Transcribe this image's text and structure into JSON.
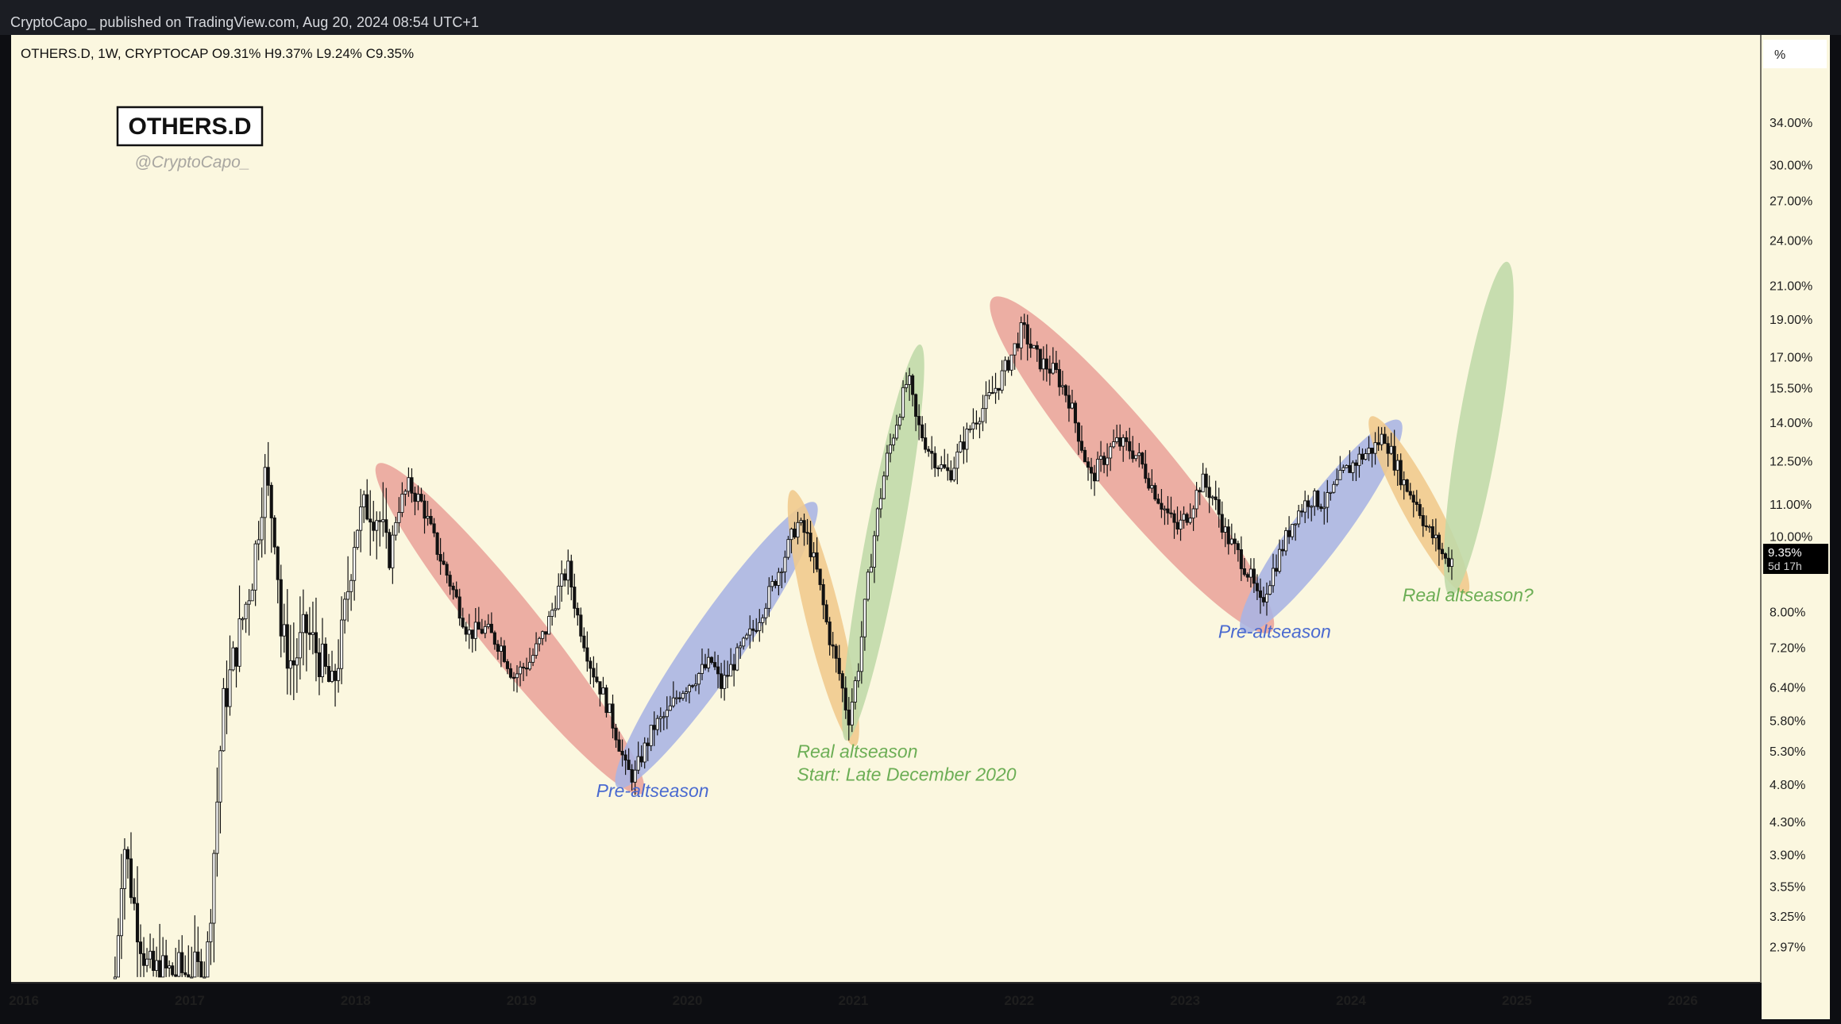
{
  "header": {
    "publish_line": "CryptoCapo_ published on TradingView.com, Aug 20, 2024 08:54 UTC+1"
  },
  "chart_data": {
    "type": "candlestick",
    "symbol_line": "OTHERS.D, 1W, CRYPTOCAP  O9.31%  H9.37%  L9.24%  C9.35%",
    "watermark_title": "OTHERS.D",
    "watermark_author": "@CryptoCapo_",
    "scale": "log",
    "unit_label": "%",
    "ylim": [
      2.7,
      40
    ],
    "xlim": [
      2016.0,
      2026.7
    ],
    "y_ticks": [
      {
        "value": 34.0,
        "label": "34.00%"
      },
      {
        "value": 30.0,
        "label": "30.00%"
      },
      {
        "value": 27.0,
        "label": "27.00%"
      },
      {
        "value": 24.0,
        "label": "24.00%"
      },
      {
        "value": 21.0,
        "label": "21.00%"
      },
      {
        "value": 19.0,
        "label": "19.00%"
      },
      {
        "value": 17.0,
        "label": "17.00%"
      },
      {
        "value": 15.5,
        "label": "15.50%"
      },
      {
        "value": 14.0,
        "label": "14.00%"
      },
      {
        "value": 12.5,
        "label": "12.50%"
      },
      {
        "value": 11.0,
        "label": "11.00%"
      },
      {
        "value": 10.0,
        "label": "10.00%"
      },
      {
        "value": 8.0,
        "label": "8.00%"
      },
      {
        "value": 7.2,
        "label": "7.20%"
      },
      {
        "value": 6.4,
        "label": "6.40%"
      },
      {
        "value": 5.8,
        "label": "5.80%"
      },
      {
        "value": 5.3,
        "label": "5.30%"
      },
      {
        "value": 4.8,
        "label": "4.80%"
      },
      {
        "value": 4.3,
        "label": "4.30%"
      },
      {
        "value": 3.9,
        "label": "3.90%"
      },
      {
        "value": 3.55,
        "label": "3.55%"
      },
      {
        "value": 3.25,
        "label": "3.25%"
      },
      {
        "value": 2.97,
        "label": "2.97%"
      }
    ],
    "x_ticks": [
      {
        "value": 2016.0,
        "label": "2016"
      },
      {
        "value": 2017.0,
        "label": "2017"
      },
      {
        "value": 2018.0,
        "label": "2018"
      },
      {
        "value": 2019.0,
        "label": "2019"
      },
      {
        "value": 2020.0,
        "label": "2020"
      },
      {
        "value": 2021.0,
        "label": "2021"
      },
      {
        "value": 2022.0,
        "label": "2022"
      },
      {
        "value": 2023.0,
        "label": "2023"
      },
      {
        "value": 2024.0,
        "label": "2024"
      },
      {
        "value": 2025.0,
        "label": "2025"
      },
      {
        "value": 2026.0,
        "label": "2026"
      }
    ],
    "last_price": {
      "value": 9.35,
      "label": "9.35%",
      "countdown": "5d 17h"
    },
    "anchors": [
      [
        2016.55,
        2.7
      ],
      [
        2016.6,
        4.1
      ],
      [
        2016.67,
        3.3
      ],
      [
        2016.75,
        2.75
      ],
      [
        2016.9,
        2.75
      ],
      [
        2017.1,
        2.75
      ],
      [
        2017.2,
        6.0
      ],
      [
        2017.3,
        7.5
      ],
      [
        2017.38,
        9.0
      ],
      [
        2017.45,
        12.0
      ],
      [
        2017.52,
        10.0
      ],
      [
        2017.55,
        7.5
      ],
      [
        2017.62,
        6.8
      ],
      [
        2017.7,
        7.6
      ],
      [
        2017.78,
        7.0
      ],
      [
        2017.86,
        6.3
      ],
      [
        2017.92,
        7.5
      ],
      [
        2018.0,
        10.3
      ],
      [
        2018.08,
        11.0
      ],
      [
        2018.14,
        10.6
      ],
      [
        2018.2,
        9.2
      ],
      [
        2018.25,
        10.8
      ],
      [
        2018.32,
        11.6
      ],
      [
        2018.4,
        11.0
      ],
      [
        2018.5,
        9.5
      ],
      [
        2018.58,
        8.6
      ],
      [
        2018.68,
        7.5
      ],
      [
        2018.78,
        7.6
      ],
      [
        2018.88,
        7.2
      ],
      [
        2018.95,
        6.6
      ],
      [
        2019.05,
        6.9
      ],
      [
        2019.15,
        7.6
      ],
      [
        2019.22,
        8.5
      ],
      [
        2019.28,
        9.1
      ],
      [
        2019.33,
        8.0
      ],
      [
        2019.42,
        6.8
      ],
      [
        2019.5,
        6.2
      ],
      [
        2019.58,
        5.5
      ],
      [
        2019.63,
        5.0
      ],
      [
        2019.68,
        4.9
      ],
      [
        2019.72,
        5.2
      ],
      [
        2019.8,
        5.7
      ],
      [
        2019.88,
        5.9
      ],
      [
        2019.95,
        6.3
      ],
      [
        2020.05,
        6.6
      ],
      [
        2020.15,
        6.9
      ],
      [
        2020.2,
        6.4
      ],
      [
        2020.3,
        7.0
      ],
      [
        2020.4,
        7.6
      ],
      [
        2020.5,
        8.5
      ],
      [
        2020.6,
        9.6
      ],
      [
        2020.66,
        10.4
      ],
      [
        2020.72,
        10.0
      ],
      [
        2020.78,
        9.0
      ],
      [
        2020.85,
        7.5
      ],
      [
        2020.92,
        6.6
      ],
      [
        2020.97,
        5.8
      ],
      [
        2021.03,
        6.8
      ],
      [
        2021.08,
        8.5
      ],
      [
        2021.14,
        10.5
      ],
      [
        2021.2,
        12.5
      ],
      [
        2021.27,
        14.3
      ],
      [
        2021.33,
        16.0
      ],
      [
        2021.38,
        14.0
      ],
      [
        2021.45,
        13.0
      ],
      [
        2021.52,
        12.3
      ],
      [
        2021.58,
        12.0
      ],
      [
        2021.65,
        13.0
      ],
      [
        2021.72,
        14.0
      ],
      [
        2021.8,
        14.8
      ],
      [
        2021.88,
        15.8
      ],
      [
        2021.95,
        17.0
      ],
      [
        2022.02,
        18.5
      ],
      [
        2022.07,
        17.5
      ],
      [
        2022.12,
        16.8
      ],
      [
        2022.22,
        16.2
      ],
      [
        2022.3,
        15.0
      ],
      [
        2022.38,
        13.0
      ],
      [
        2022.43,
        11.8
      ],
      [
        2022.5,
        12.5
      ],
      [
        2022.58,
        13.2
      ],
      [
        2022.66,
        13.0
      ],
      [
        2022.72,
        12.6
      ],
      [
        2022.8,
        11.6
      ],
      [
        2022.88,
        10.8
      ],
      [
        2022.95,
        10.2
      ],
      [
        2023.03,
        10.8
      ],
      [
        2023.1,
        11.8
      ],
      [
        2023.17,
        11.2
      ],
      [
        2023.25,
        10.0
      ],
      [
        2023.33,
        9.4
      ],
      [
        2023.4,
        8.8
      ],
      [
        2023.45,
        8.1
      ],
      [
        2023.5,
        8.7
      ],
      [
        2023.58,
        9.6
      ],
      [
        2023.66,
        10.6
      ],
      [
        2023.75,
        11.2
      ],
      [
        2023.85,
        11.0
      ],
      [
        2023.95,
        12.0
      ],
      [
        2024.05,
        12.6
      ],
      [
        2024.14,
        13.0
      ],
      [
        2024.2,
        13.5
      ],
      [
        2024.26,
        12.5
      ],
      [
        2024.32,
        11.7
      ],
      [
        2024.4,
        11.0
      ],
      [
        2024.46,
        10.2
      ],
      [
        2024.52,
        9.8
      ],
      [
        2024.57,
        9.3
      ],
      [
        2024.62,
        9.35
      ]
    ],
    "zones": [
      {
        "name": "red-zone-2018",
        "color": "#e9a49b",
        "x1": 2018.21,
        "y1": 11.8,
        "x2": 2019.65,
        "y2": 4.9,
        "ry": 38
      },
      {
        "name": "blue-zone-2019",
        "color": "#a9b4e4",
        "x1": 2019.65,
        "y1": 5.0,
        "x2": 2020.7,
        "y2": 10.5,
        "ry": 34
      },
      {
        "name": "orange-zone-2020",
        "color": "#f0c98c",
        "x1": 2020.66,
        "y1": 10.8,
        "x2": 2020.98,
        "y2": 5.7,
        "ry": 22
      },
      {
        "name": "green-zone-2021",
        "color": "#bfd9a8",
        "x1": 2020.98,
        "y1": 5.8,
        "x2": 2021.38,
        "y2": 16.6,
        "ry": 23
      },
      {
        "name": "red-zone-2022",
        "color": "#e9a49b",
        "x1": 2021.92,
        "y1": 19.3,
        "x2": 2023.44,
        "y2": 7.9,
        "ry": 46
      },
      {
        "name": "blue-zone-2023",
        "color": "#a9b4e4",
        "x1": 2023.42,
        "y1": 7.9,
        "x2": 2024.22,
        "y2": 13.4,
        "ry": 32
      },
      {
        "name": "orange-zone-2024",
        "color": "#f0c98c",
        "x1": 2024.18,
        "y1": 13.5,
        "x2": 2024.64,
        "y2": 8.9,
        "ry": 22
      },
      {
        "name": "green-zone-2025",
        "color": "#bfd9a8",
        "x1": 2024.62,
        "y1": 8.9,
        "x2": 2024.92,
        "y2": 21.2,
        "ry": 26
      }
    ],
    "annotations": [
      {
        "name": "pre-altseason-2019-label",
        "text": "Pre-altseason",
        "x": 2019.45,
        "y": 4.62,
        "color": "#4a6ad0"
      },
      {
        "name": "real-altseason-2021-label",
        "text": "Real altseason",
        "x": 2020.66,
        "y": 5.19,
        "color": "#6cae55"
      },
      {
        "name": "start-late-december-label",
        "text": "Start: Late December 2020",
        "x": 2020.66,
        "y": 4.85,
        "color": "#6cae55"
      },
      {
        "name": "pre-altseason-2023-label",
        "text": "Pre-altseason",
        "x": 2023.2,
        "y": 7.4,
        "color": "#4a6ad0"
      },
      {
        "name": "real-altseason-question-label",
        "text": "Real altseason?",
        "x": 2024.31,
        "y": 8.25,
        "color": "#6cae55"
      }
    ]
  }
}
